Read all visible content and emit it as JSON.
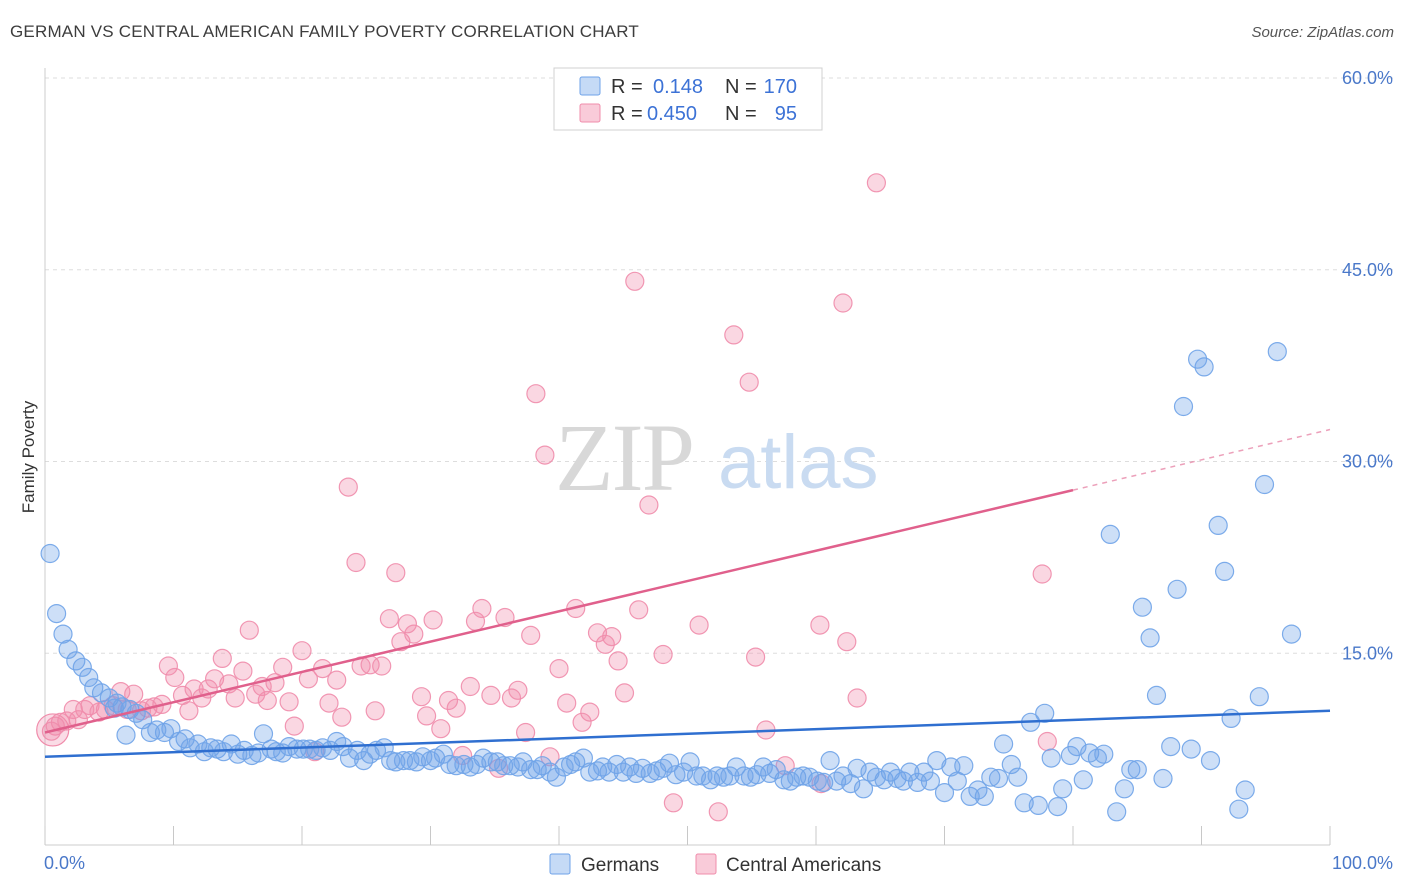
{
  "header": {
    "title": "GERMAN VS CENTRAL AMERICAN FAMILY POVERTY CORRELATION CHART",
    "source": "Source: ZipAtlas.com"
  },
  "watermark": {
    "zip": "ZIP",
    "atlas": "atlas"
  },
  "legend": {
    "rows": [
      {
        "r_label": "R =",
        "r_value": "0.148",
        "n_label": "N =",
        "n_value": "170",
        "color": "#6fa3e8"
      },
      {
        "r_label": "R =",
        "r_value": "0.450",
        "n_label": "N =",
        "n_value": "95",
        "color": "#f08cab"
      }
    ]
  },
  "bottom_legend": {
    "germans": "Germans",
    "central_americans": "Central Americans"
  },
  "chart_data": {
    "type": "scatter",
    "title": "GERMAN VS CENTRAL AMERICAN FAMILY POVERTY CORRELATION CHART",
    "xlabel": "",
    "ylabel": "Family Poverty",
    "xlim": [
      0,
      100
    ],
    "ylim": [
      0,
      60
    ],
    "x_tick_labels": [
      "0.0%",
      "100.0%"
    ],
    "y_ticks": [
      15,
      30,
      45,
      60
    ],
    "y_tick_labels": [
      "15.0%",
      "30.0%",
      "45.0%",
      "60.0%"
    ],
    "grid": "horizontal dashed",
    "legend_position": "top-center",
    "colors": {
      "germans": "#6fa3e8",
      "germans_line": "#2f6fd0",
      "central_americans": "#f08cab",
      "central_americans_line": "#e0608c"
    },
    "series": [
      {
        "name": "Germans",
        "trend": {
          "x": [
            0,
            100
          ],
          "y": [
            6.9,
            10.5
          ],
          "solid_until": 100
        },
        "points": [
          [
            0.4,
            22.8
          ],
          [
            0.9,
            18.1
          ],
          [
            1.4,
            16.5
          ],
          [
            1.8,
            15.3
          ],
          [
            2.4,
            14.4
          ],
          [
            2.9,
            13.9
          ],
          [
            3.4,
            13.1
          ],
          [
            3.8,
            12.3
          ],
          [
            4.4,
            11.9
          ],
          [
            5.0,
            11.5
          ],
          [
            5.6,
            11.1
          ],
          [
            6.0,
            10.8
          ],
          [
            6.6,
            10.6
          ],
          [
            7.1,
            10.3
          ],
          [
            7.6,
            9.8
          ],
          [
            8.2,
            8.8
          ],
          [
            8.7,
            9.0
          ],
          [
            9.3,
            8.8
          ],
          [
            9.8,
            9.1
          ],
          [
            10.4,
            8.1
          ],
          [
            10.9,
            8.3
          ],
          [
            11.3,
            7.6
          ],
          [
            11.9,
            7.9
          ],
          [
            12.4,
            7.3
          ],
          [
            12.9,
            7.6
          ],
          [
            13.4,
            7.5
          ],
          [
            13.9,
            7.3
          ],
          [
            14.5,
            7.9
          ],
          [
            15.0,
            7.1
          ],
          [
            15.5,
            7.4
          ],
          [
            16.1,
            7.0
          ],
          [
            16.6,
            7.2
          ],
          [
            17.0,
            8.7
          ],
          [
            17.6,
            7.5
          ],
          [
            18.0,
            7.3
          ],
          [
            18.5,
            7.2
          ],
          [
            19.0,
            7.7
          ],
          [
            19.6,
            7.5
          ],
          [
            20.1,
            7.5
          ],
          [
            20.6,
            7.5
          ],
          [
            21.1,
            7.4
          ],
          [
            21.6,
            7.6
          ],
          [
            22.2,
            7.4
          ],
          [
            22.7,
            8.1
          ],
          [
            23.2,
            7.7
          ],
          [
            23.7,
            6.8
          ],
          [
            24.3,
            7.4
          ],
          [
            24.8,
            6.6
          ],
          [
            25.3,
            7.1
          ],
          [
            25.8,
            7.4
          ],
          [
            26.4,
            7.6
          ],
          [
            26.9,
            6.6
          ],
          [
            27.3,
            6.5
          ],
          [
            27.9,
            6.6
          ],
          [
            28.4,
            6.6
          ],
          [
            28.9,
            6.5
          ],
          [
            29.4,
            6.9
          ],
          [
            30.0,
            6.6
          ],
          [
            30.4,
            6.8
          ],
          [
            31.0,
            7.1
          ],
          [
            31.5,
            6.3
          ],
          [
            32.0,
            6.2
          ],
          [
            32.6,
            6.3
          ],
          [
            33.1,
            6.1
          ],
          [
            33.6,
            6.3
          ],
          [
            34.1,
            6.8
          ],
          [
            34.7,
            6.5
          ],
          [
            35.2,
            6.5
          ],
          [
            35.7,
            6.2
          ],
          [
            36.2,
            6.2
          ],
          [
            36.8,
            6.1
          ],
          [
            37.2,
            6.5
          ],
          [
            37.8,
            5.9
          ],
          [
            38.3,
            5.9
          ],
          [
            38.7,
            6.2
          ],
          [
            39.3,
            5.7
          ],
          [
            39.8,
            5.3
          ],
          [
            40.4,
            6.1
          ],
          [
            40.9,
            6.3
          ],
          [
            41.3,
            6.5
          ],
          [
            41.9,
            6.8
          ],
          [
            42.4,
            5.7
          ],
          [
            43.0,
            5.8
          ],
          [
            43.4,
            6.1
          ],
          [
            43.9,
            5.7
          ],
          [
            44.5,
            6.3
          ],
          [
            45.0,
            5.7
          ],
          [
            45.5,
            6.1
          ],
          [
            46.0,
            5.6
          ],
          [
            46.5,
            6.0
          ],
          [
            47.1,
            5.6
          ],
          [
            47.6,
            5.8
          ],
          [
            48.1,
            6.0
          ],
          [
            48.6,
            6.4
          ],
          [
            49.1,
            5.5
          ],
          [
            49.7,
            5.7
          ],
          [
            50.2,
            6.5
          ],
          [
            50.7,
            5.4
          ],
          [
            51.2,
            5.4
          ],
          [
            51.8,
            5.1
          ],
          [
            52.3,
            5.4
          ],
          [
            52.8,
            5.3
          ],
          [
            53.3,
            5.4
          ],
          [
            53.8,
            6.1
          ],
          [
            54.4,
            5.4
          ],
          [
            54.9,
            5.3
          ],
          [
            55.4,
            5.5
          ],
          [
            55.9,
            6.1
          ],
          [
            56.4,
            5.6
          ],
          [
            56.9,
            5.9
          ],
          [
            57.5,
            5.1
          ],
          [
            58.0,
            5.0
          ],
          [
            58.5,
            5.3
          ],
          [
            59.0,
            5.4
          ],
          [
            59.5,
            5.3
          ],
          [
            60.1,
            5.0
          ],
          [
            60.6,
            4.9
          ],
          [
            61.1,
            6.6
          ],
          [
            61.6,
            5.0
          ],
          [
            62.1,
            5.4
          ],
          [
            62.7,
            4.8
          ],
          [
            63.2,
            6.0
          ],
          [
            63.7,
            4.4
          ],
          [
            64.2,
            5.7
          ],
          [
            64.7,
            5.3
          ],
          [
            65.3,
            5.1
          ],
          [
            65.8,
            5.7
          ],
          [
            66.3,
            5.2
          ],
          [
            66.8,
            5.0
          ],
          [
            67.3,
            5.7
          ],
          [
            67.9,
            4.9
          ],
          [
            68.4,
            5.7
          ],
          [
            68.9,
            5.0
          ],
          [
            69.4,
            6.6
          ],
          [
            70.0,
            4.1
          ],
          [
            70.5,
            6.1
          ],
          [
            71.0,
            5.0
          ],
          [
            71.5,
            6.2
          ],
          [
            72.0,
            3.8
          ],
          [
            72.6,
            4.3
          ],
          [
            73.1,
            3.8
          ],
          [
            73.6,
            5.3
          ],
          [
            74.2,
            5.2
          ],
          [
            74.6,
            7.9
          ],
          [
            75.2,
            6.3
          ],
          [
            75.7,
            5.3
          ],
          [
            76.2,
            3.3
          ],
          [
            76.7,
            9.6
          ],
          [
            77.3,
            3.1
          ],
          [
            77.8,
            10.3
          ],
          [
            78.3,
            6.8
          ],
          [
            78.8,
            3.0
          ],
          [
            79.2,
            4.4
          ],
          [
            79.8,
            7.0
          ],
          [
            80.3,
            7.7
          ],
          [
            80.8,
            5.1
          ],
          [
            81.3,
            7.2
          ],
          [
            81.9,
            6.8
          ],
          [
            82.4,
            7.1
          ],
          [
            82.9,
            24.3
          ],
          [
            83.4,
            2.6
          ],
          [
            84.0,
            4.4
          ],
          [
            84.5,
            5.9
          ],
          [
            85.0,
            5.9
          ],
          [
            85.4,
            18.6
          ],
          [
            86.0,
            16.2
          ],
          [
            86.5,
            11.7
          ],
          [
            87.0,
            5.2
          ],
          [
            87.6,
            7.7
          ],
          [
            88.1,
            20.0
          ],
          [
            88.6,
            34.3
          ],
          [
            89.2,
            7.5
          ],
          [
            89.7,
            38.0
          ],
          [
            90.2,
            37.4
          ],
          [
            90.7,
            6.6
          ],
          [
            91.3,
            25.0
          ],
          [
            91.8,
            21.4
          ],
          [
            92.3,
            9.9
          ],
          [
            92.9,
            2.8
          ],
          [
            93.4,
            4.3
          ],
          [
            94.5,
            11.6
          ],
          [
            94.9,
            28.2
          ],
          [
            95.9,
            38.6
          ],
          [
            97.0,
            16.5
          ],
          [
            5.4,
            10.7
          ],
          [
            6.3,
            8.6
          ]
        ]
      },
      {
        "name": "Central Americans",
        "trend": {
          "x": [
            0,
            100
          ],
          "y": [
            8.8,
            32.5
          ],
          "solid_until": 80
        },
        "points": [
          [
            0.5,
            8.9
          ],
          [
            0.8,
            9.3
          ],
          [
            1.2,
            9.6
          ],
          [
            1.7,
            9.7
          ],
          [
            2.2,
            10.6
          ],
          [
            2.6,
            9.8
          ],
          [
            3.1,
            10.6
          ],
          [
            3.5,
            10.9
          ],
          [
            4.2,
            10.4
          ],
          [
            4.7,
            10.6
          ],
          [
            5.3,
            10.9
          ],
          [
            5.9,
            12.0
          ],
          [
            6.4,
            10.6
          ],
          [
            6.9,
            11.8
          ],
          [
            7.5,
            10.5
          ],
          [
            8.0,
            10.7
          ],
          [
            8.5,
            10.8
          ],
          [
            9.1,
            11.0
          ],
          [
            9.6,
            14.0
          ],
          [
            10.1,
            13.1
          ],
          [
            10.7,
            11.7
          ],
          [
            11.2,
            10.5
          ],
          [
            11.6,
            12.2
          ],
          [
            12.2,
            11.5
          ],
          [
            12.7,
            12.2
          ],
          [
            13.2,
            13.0
          ],
          [
            13.8,
            14.6
          ],
          [
            14.3,
            12.6
          ],
          [
            14.8,
            11.5
          ],
          [
            15.4,
            13.6
          ],
          [
            15.9,
            16.8
          ],
          [
            16.4,
            11.8
          ],
          [
            16.9,
            12.4
          ],
          [
            17.3,
            11.3
          ],
          [
            17.9,
            12.7
          ],
          [
            18.5,
            13.9
          ],
          [
            19.0,
            11.2
          ],
          [
            19.4,
            9.3
          ],
          [
            20.0,
            15.2
          ],
          [
            20.5,
            13.0
          ],
          [
            21.0,
            7.3
          ],
          [
            21.6,
            13.8
          ],
          [
            22.1,
            11.1
          ],
          [
            22.7,
            12.9
          ],
          [
            23.1,
            10.0
          ],
          [
            23.6,
            28.0
          ],
          [
            24.2,
            22.1
          ],
          [
            24.6,
            14.0
          ],
          [
            25.3,
            14.1
          ],
          [
            25.7,
            10.5
          ],
          [
            26.2,
            14.0
          ],
          [
            26.8,
            17.7
          ],
          [
            27.3,
            21.3
          ],
          [
            27.7,
            15.9
          ],
          [
            28.2,
            17.3
          ],
          [
            28.7,
            16.5
          ],
          [
            29.3,
            11.6
          ],
          [
            29.7,
            10.1
          ],
          [
            30.2,
            17.6
          ],
          [
            30.8,
            9.1
          ],
          [
            31.4,
            11.3
          ],
          [
            32.0,
            10.7
          ],
          [
            32.5,
            7.0
          ],
          [
            33.1,
            12.4
          ],
          [
            33.5,
            17.5
          ],
          [
            34.0,
            18.5
          ],
          [
            34.7,
            11.7
          ],
          [
            35.3,
            6.0
          ],
          [
            35.8,
            17.8
          ],
          [
            36.3,
            11.5
          ],
          [
            36.8,
            12.1
          ],
          [
            37.4,
            8.8
          ],
          [
            37.8,
            16.4
          ],
          [
            38.2,
            35.3
          ],
          [
            38.9,
            30.5
          ],
          [
            39.3,
            6.9
          ],
          [
            40.0,
            13.8
          ],
          [
            40.6,
            11.1
          ],
          [
            41.3,
            18.5
          ],
          [
            41.8,
            9.6
          ],
          [
            42.4,
            10.4
          ],
          [
            43.0,
            16.6
          ],
          [
            43.6,
            15.7
          ],
          [
            44.1,
            16.3
          ],
          [
            44.6,
            14.4
          ],
          [
            45.1,
            11.9
          ],
          [
            45.9,
            44.1
          ],
          [
            46.2,
            18.4
          ],
          [
            47.0,
            26.6
          ],
          [
            48.1,
            14.9
          ],
          [
            48.9,
            3.3
          ],
          [
            50.9,
            17.2
          ],
          [
            52.4,
            2.6
          ],
          [
            53.6,
            39.9
          ],
          [
            54.8,
            36.2
          ],
          [
            55.3,
            14.7
          ],
          [
            56.1,
            9.0
          ],
          [
            57.6,
            6.2
          ],
          [
            60.3,
            17.2
          ],
          [
            62.1,
            42.4
          ],
          [
            60.4,
            4.8
          ],
          [
            62.4,
            15.9
          ],
          [
            63.2,
            11.5
          ],
          [
            64.7,
            51.8
          ],
          [
            78.0,
            8.1
          ],
          [
            77.6,
            21.2
          ]
        ]
      }
    ]
  }
}
